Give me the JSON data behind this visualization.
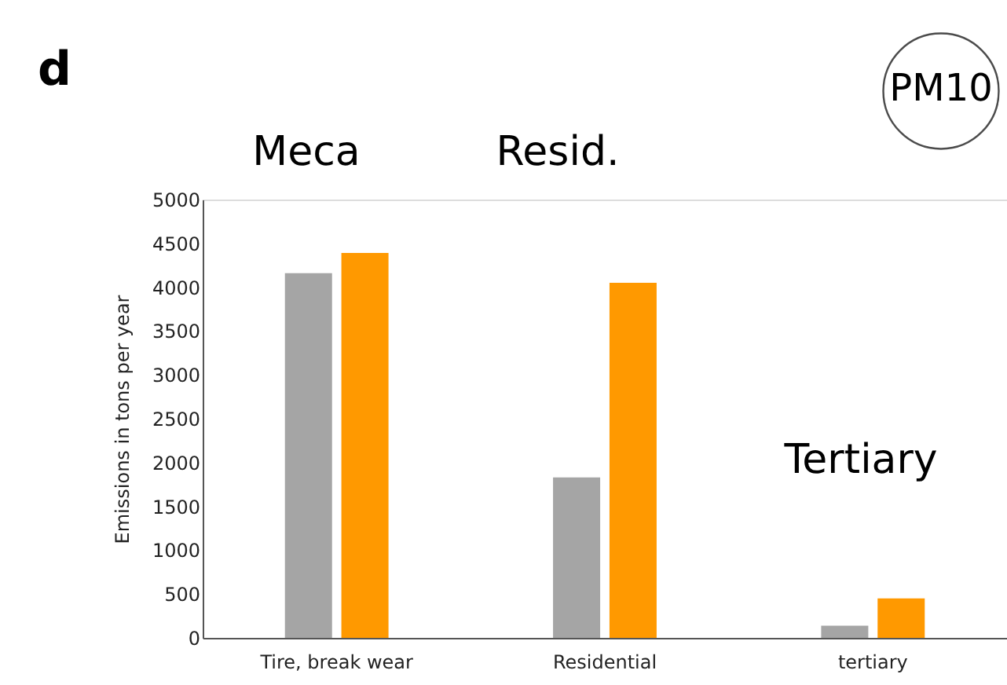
{
  "chart_data": {
    "type": "bar",
    "title": "d",
    "ylabel": "Emissions in tons per year",
    "categories": [
      "Tire, break wear",
      "Residential",
      "tertiary"
    ],
    "series": [
      {
        "color": "#a5a5a5",
        "values": [
          4160,
          1830,
          140
        ]
      },
      {
        "color": "#ff9900",
        "values": [
          4390,
          4050,
          450
        ]
      }
    ],
    "ylim": [
      0,
      5000
    ],
    "yticks": [
      0,
      500,
      1000,
      1500,
      2000,
      2500,
      3000,
      3500,
      4000,
      4500,
      5000
    ],
    "grid": false,
    "legend": false,
    "annotations": [
      "PM10",
      "Meca",
      "Resid.",
      "Tertiary"
    ]
  }
}
